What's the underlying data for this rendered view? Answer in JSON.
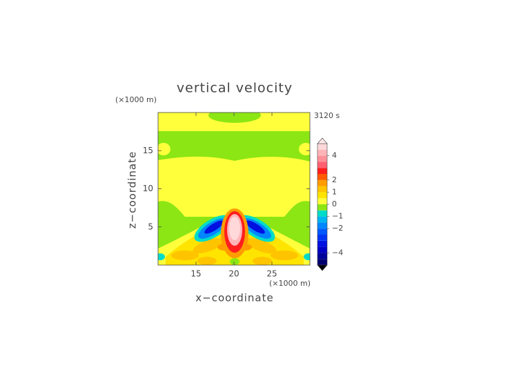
{
  "chart_data": {
    "type": "contour",
    "title": "vertical velocity",
    "time_label": "3120 s",
    "x_unit_label": "(×1000 m)",
    "y_unit_label": "(×1000 m)",
    "xlabel": "x−coordinate",
    "ylabel": "z−coordinate",
    "xlim": [
      10,
      30
    ],
    "ylim": [
      0,
      20
    ],
    "xticks": [
      15,
      20,
      25
    ],
    "yticks": [
      5,
      10,
      15
    ],
    "colorbar": {
      "lim": [
        -5,
        5
      ],
      "levels": [
        -5,
        -4.5,
        -4,
        -3.5,
        -3,
        -2.5,
        -2,
        -1.5,
        -1,
        -0.5,
        0,
        0.5,
        1,
        1.5,
        2,
        2.5,
        3,
        3.5,
        4,
        4.5,
        5
      ],
      "colors": [
        "#000070",
        "#00009a",
        "#0000c4",
        "#0010e0",
        "#0034f4",
        "#0058ff",
        "#0086ff",
        "#00b4f0",
        "#00dcc8",
        "#8ce614",
        "#ffff3c",
        "#ffe400",
        "#ffc400",
        "#ff9c00",
        "#ff5a00",
        "#ff1e1e",
        "#ff6070",
        "#ff9098",
        "#ffb4b8",
        "#ffd8da"
      ],
      "over_color": "#ffe8e8",
      "under_color": "#000000",
      "ticks": [
        4,
        2,
        1,
        0,
        {
          "value": -1,
          "label": "−1"
        },
        {
          "value": -2,
          "label": "−2"
        },
        {
          "value": -4,
          "label": "−4"
        }
      ]
    }
  }
}
